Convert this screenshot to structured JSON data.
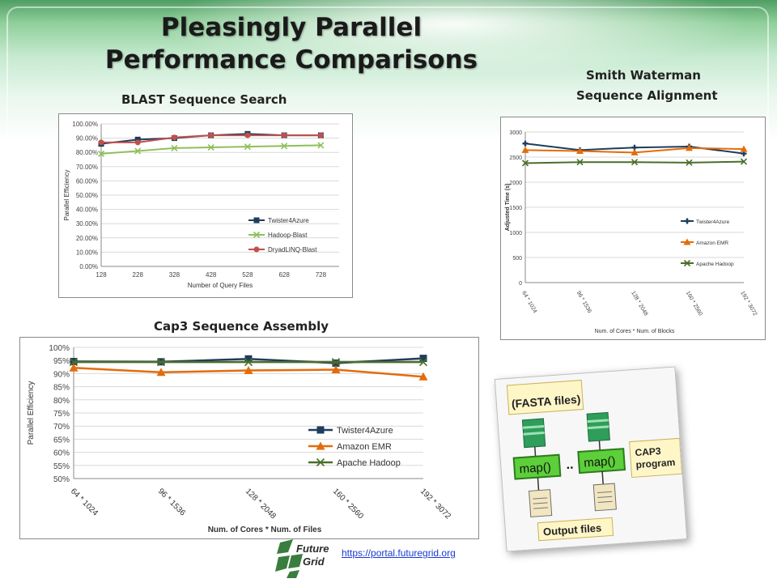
{
  "title_line1": "Pleasingly Parallel",
  "title_line2": "Performance Comparisons",
  "blast_label": "BLAST Sequence Search",
  "sw_label_line1": "Smith Waterman",
  "sw_label_line2": "Sequence Alignment",
  "cap3_label": "Cap3 Sequence Assembly",
  "link_text": "https://portal.futuregrid.org",
  "logo_text_1": "Future",
  "logo_text_2": "Grid",
  "thumbnail": {
    "header": "(FASTA files)",
    "map1": "map()",
    "map2": "map()",
    "dots": "..",
    "side_label_1": "CAP3",
    "side_label_2": "program",
    "footer": "Output files"
  },
  "colors": {
    "twister": "#1f3d5c",
    "hadoop_blast": "#8fbf5a",
    "dryad": "#c0504d",
    "amazon": "#e36c0a",
    "apache": "#4a6e2a",
    "grid": "#d9d9d9",
    "axis": "#888888",
    "thumb_green": "#4caf50"
  },
  "chart_data": [
    {
      "id": "blast",
      "type": "line",
      "title": "",
      "xlabel": "Number of Query Files",
      "ylabel": "Parallel Efficiency",
      "x": [
        128,
        228,
        328,
        428,
        528,
        628,
        728
      ],
      "x_ticks": [
        "128",
        "228",
        "328",
        "428",
        "528",
        "628",
        "728"
      ],
      "xlim": [
        128,
        778
      ],
      "ylim": [
        0,
        1
      ],
      "y_ticks": [
        "0.00%",
        "10.00%",
        "20.00%",
        "30.00%",
        "40.00%",
        "50.00%",
        "60.00%",
        "70.00%",
        "80.00%",
        "90.00%",
        "100.00%"
      ],
      "grid": true,
      "legend": "lower-right",
      "series": [
        {
          "name": "Twister4Azure",
          "marker": "square",
          "x": [
            128,
            228,
            328,
            428,
            528,
            628,
            728
          ],
          "values": [
            0.86,
            0.89,
            0.9,
            0.92,
            0.93,
            0.92,
            0.92
          ]
        },
        {
          "name": "Hadoop-Blast",
          "marker": "x",
          "x": [
            128,
            228,
            328,
            428,
            528,
            628,
            728
          ],
          "values": [
            0.79,
            0.81,
            0.83,
            0.835,
            0.84,
            0.845,
            0.85
          ]
        },
        {
          "name": "DryadLINQ-Blast",
          "marker": "circle",
          "x": [
            128,
            228,
            328,
            428,
            528,
            628,
            728
          ],
          "values": [
            0.87,
            0.87,
            0.905,
            0.92,
            0.92,
            0.92,
            0.92
          ]
        }
      ]
    },
    {
      "id": "sw",
      "type": "line",
      "title": "",
      "xlabel": "Num. of Cores * Num. of Blocks",
      "ylabel": "Adjusted Time (s)",
      "categories": [
        "64 * 1024",
        "96 * 1536",
        "128 * 2048",
        "160 * 2560",
        "192 * 3072"
      ],
      "ylim": [
        0,
        3000
      ],
      "y_ticks": [
        "0",
        "500",
        "1000",
        "1500",
        "2000",
        "2500",
        "3000"
      ],
      "grid": true,
      "legend": "right",
      "series": [
        {
          "name": "Twister4Azure",
          "marker": "plus",
          "values": [
            2770,
            2640,
            2690,
            2710,
            2570
          ]
        },
        {
          "name": "Amazon EMR",
          "marker": "triangle",
          "values": [
            2640,
            2620,
            2590,
            2680,
            2660
          ]
        },
        {
          "name": "Apache Hadoop",
          "marker": "x",
          "values": [
            2380,
            2400,
            2400,
            2390,
            2410
          ]
        }
      ]
    },
    {
      "id": "cap3",
      "type": "line",
      "title": "",
      "xlabel": "Num. of Cores * Num. of Files",
      "ylabel": "Parallel Efficiency",
      "categories": [
        "64 * 1024",
        "96 * 1536",
        "128 * 2048",
        "160 * 2560",
        "192 * 3072"
      ],
      "ylim": [
        0.5,
        1.0
      ],
      "y_ticks": [
        "50%",
        "55%",
        "60%",
        "65%",
        "70%",
        "75%",
        "80%",
        "85%",
        "90%",
        "95%",
        "100%"
      ],
      "grid": true,
      "legend": "lower-right",
      "series": [
        {
          "name": "Twister4Azure",
          "marker": "square",
          "values": [
            0.946,
            0.945,
            0.956,
            0.94,
            0.958
          ]
        },
        {
          "name": "Amazon EMR",
          "marker": "triangle",
          "values": [
            0.922,
            0.905,
            0.912,
            0.915,
            0.888
          ]
        },
        {
          "name": "Apache Hadoop",
          "marker": "x",
          "values": [
            0.944,
            0.944,
            0.944,
            0.944,
            0.944
          ]
        }
      ]
    }
  ]
}
